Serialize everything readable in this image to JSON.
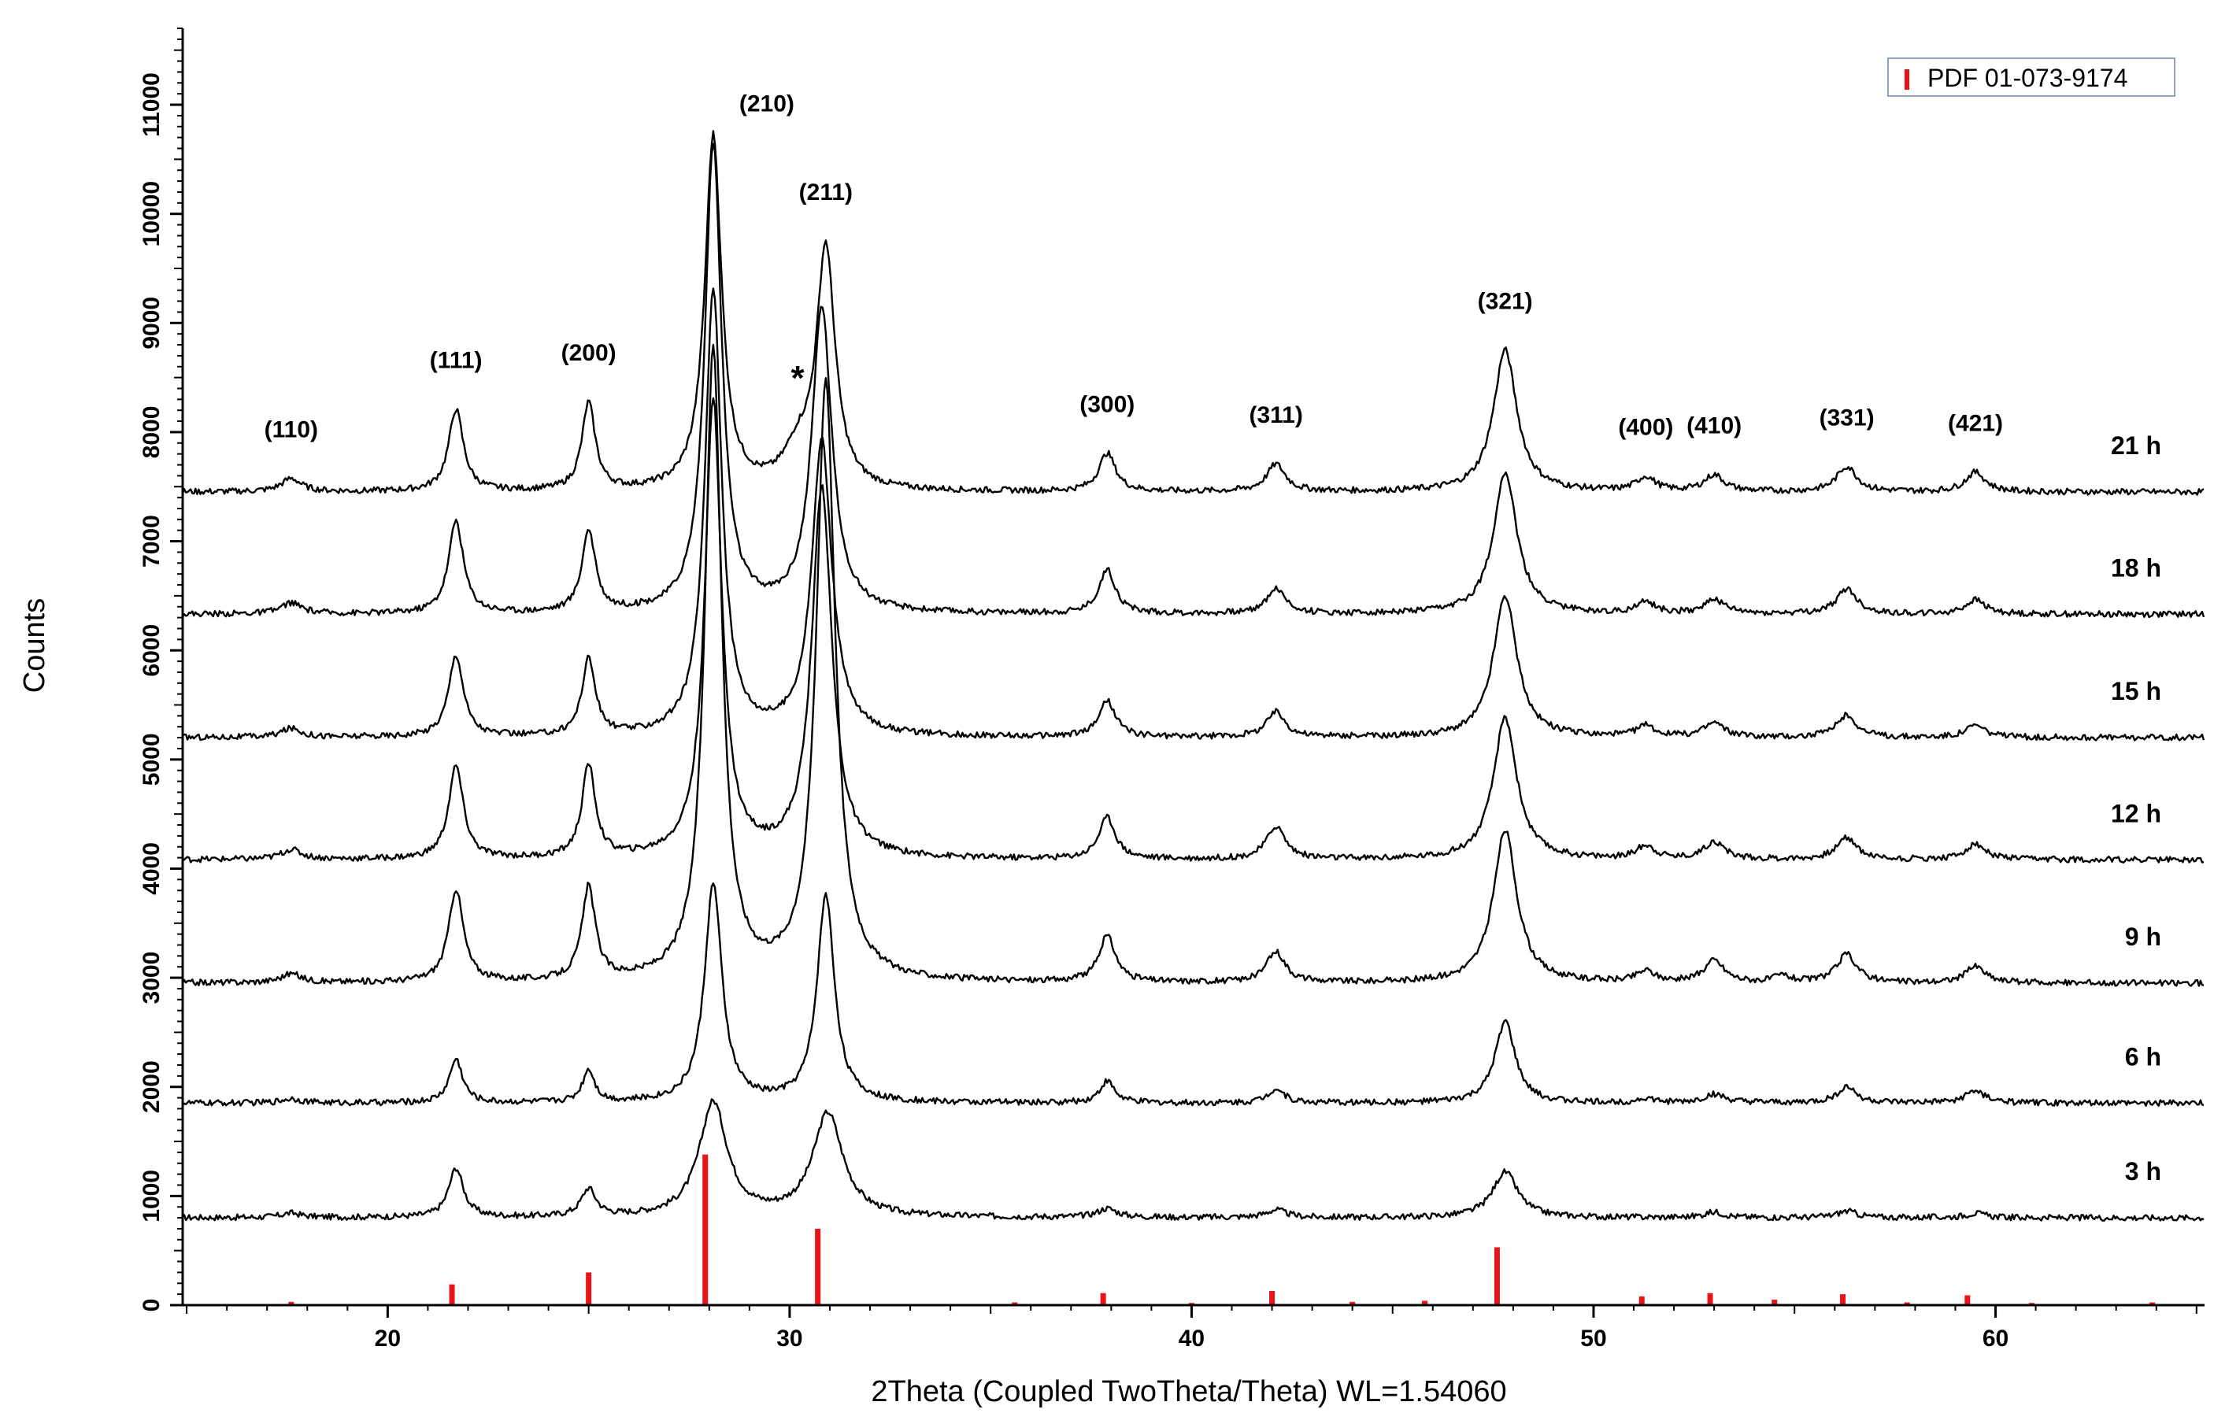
{
  "chart_data": {
    "type": "line",
    "xlabel": "2Theta (Coupled TwoTheta/Theta) WL=1.54060",
    "ylabel": "Counts",
    "xlim": [
      14.9,
      65.2
    ],
    "ylim": [
      0,
      11700
    ],
    "xticks_major": [
      20,
      30,
      40,
      50,
      60
    ],
    "yticks_major": [
      0,
      1000,
      2000,
      3000,
      4000,
      5000,
      6000,
      7000,
      8000,
      9000,
      10000,
      11000
    ],
    "legend": {
      "position": "top-right",
      "label": "PDF 01-073-9174",
      "color": "#e8141a"
    },
    "series_color": "#000000",
    "peak_markers": [
      {
        "label": "(110)",
        "x": 17.6
      },
      {
        "label": "(111)",
        "x": 21.7
      },
      {
        "label": "(200)",
        "x": 25.0
      },
      {
        "label": "(210)",
        "x": 28.1
      },
      {
        "label": "(211)",
        "x": 30.9
      },
      {
        "label": "*",
        "x": 30.2
      },
      {
        "label": "(300)",
        "x": 37.9
      },
      {
        "label": "(311)",
        "x": 42.1
      },
      {
        "label": "(321)",
        "x": 47.8
      },
      {
        "label": "(400)",
        "x": 51.3
      },
      {
        "label": "(410)",
        "x": 53.0
      },
      {
        "label": "(331)",
        "x": 56.3
      },
      {
        "label": "(421)",
        "x": 59.5
      }
    ],
    "series": [
      {
        "name": "3 h",
        "baseline": 800,
        "peaks": [
          [
            17.6,
            40,
            0.3
          ],
          [
            21.7,
            450,
            0.22
          ],
          [
            25.0,
            250,
            0.22
          ],
          [
            28.1,
            1050,
            0.42
          ],
          [
            30.95,
            950,
            0.45
          ],
          [
            37.9,
            80,
            0.3
          ],
          [
            42.1,
            70,
            0.3
          ],
          [
            47.8,
            420,
            0.38
          ],
          [
            53.0,
            50,
            0.3
          ],
          [
            56.3,
            60,
            0.3
          ],
          [
            59.5,
            40,
            0.3
          ]
        ]
      },
      {
        "name": "6 h",
        "baseline": 1850,
        "peaks": [
          [
            17.6,
            40,
            0.3
          ],
          [
            21.7,
            400,
            0.2
          ],
          [
            25.0,
            300,
            0.18
          ],
          [
            28.1,
            2000,
            0.26
          ],
          [
            30.9,
            1900,
            0.26
          ],
          [
            37.9,
            200,
            0.22
          ],
          [
            42.1,
            130,
            0.25
          ],
          [
            47.8,
            750,
            0.3
          ],
          [
            51.3,
            40,
            0.25
          ],
          [
            53.0,
            80,
            0.3
          ],
          [
            56.3,
            150,
            0.28
          ],
          [
            59.5,
            110,
            0.3
          ]
        ]
      },
      {
        "name": "9 h",
        "baseline": 2950,
        "peaks": [
          [
            17.6,
            80,
            0.3
          ],
          [
            21.7,
            850,
            0.22
          ],
          [
            25.0,
            850,
            0.2
          ],
          [
            28.1,
            5800,
            0.25
          ],
          [
            30.9,
            5500,
            0.28
          ],
          [
            37.9,
            420,
            0.25
          ],
          [
            42.1,
            280,
            0.28
          ],
          [
            47.8,
            1400,
            0.35
          ],
          [
            51.3,
            100,
            0.28
          ],
          [
            53.0,
            200,
            0.3
          ],
          [
            54.7,
            60,
            0.25
          ],
          [
            56.3,
            260,
            0.3
          ],
          [
            59.5,
            150,
            0.3
          ]
        ]
      },
      {
        "name": "12 h",
        "baseline": 4080,
        "peaks": [
          [
            17.6,
            90,
            0.3
          ],
          [
            21.7,
            850,
            0.22
          ],
          [
            25.0,
            850,
            0.2
          ],
          [
            28.1,
            4200,
            0.25
          ],
          [
            30.8,
            3400,
            0.3
          ],
          [
            37.9,
            380,
            0.25
          ],
          [
            42.1,
            300,
            0.28
          ],
          [
            47.8,
            1300,
            0.35
          ],
          [
            51.3,
            120,
            0.28
          ],
          [
            53.0,
            160,
            0.3
          ],
          [
            56.3,
            200,
            0.3
          ],
          [
            59.5,
            140,
            0.3
          ]
        ]
      },
      {
        "name": "15 h",
        "baseline": 5200,
        "peaks": [
          [
            17.6,
            80,
            0.3
          ],
          [
            21.7,
            750,
            0.22
          ],
          [
            25.0,
            700,
            0.2
          ],
          [
            28.1,
            4100,
            0.25
          ],
          [
            30.8,
            2700,
            0.3
          ],
          [
            37.9,
            330,
            0.25
          ],
          [
            42.1,
            230,
            0.28
          ],
          [
            47.8,
            1300,
            0.35
          ],
          [
            51.3,
            100,
            0.28
          ],
          [
            53.0,
            130,
            0.3
          ],
          [
            56.3,
            200,
            0.3
          ],
          [
            59.5,
            110,
            0.3
          ]
        ]
      },
      {
        "name": "18 h",
        "baseline": 6330,
        "peaks": [
          [
            17.6,
            100,
            0.3
          ],
          [
            21.7,
            850,
            0.22
          ],
          [
            25.0,
            750,
            0.2
          ],
          [
            28.1,
            4300,
            0.25
          ],
          [
            30.8,
            2800,
            0.3
          ],
          [
            37.9,
            400,
            0.25
          ],
          [
            42.1,
            230,
            0.28
          ],
          [
            47.8,
            1300,
            0.35
          ],
          [
            51.3,
            100,
            0.28
          ],
          [
            53.0,
            130,
            0.3
          ],
          [
            56.3,
            230,
            0.3
          ],
          [
            59.5,
            130,
            0.3
          ]
        ]
      },
      {
        "name": "21 h",
        "baseline": 7450,
        "peaks": [
          [
            17.6,
            120,
            0.3
          ],
          [
            21.7,
            750,
            0.22
          ],
          [
            25.0,
            800,
            0.2
          ],
          [
            28.1,
            3250,
            0.25
          ],
          [
            30.2,
            300,
            0.4
          ],
          [
            30.9,
            2200,
            0.28
          ],
          [
            37.9,
            350,
            0.25
          ],
          [
            42.1,
            250,
            0.28
          ],
          [
            47.8,
            1300,
            0.35
          ],
          [
            51.3,
            130,
            0.28
          ],
          [
            53.0,
            150,
            0.3
          ],
          [
            56.3,
            230,
            0.3
          ],
          [
            59.5,
            180,
            0.3
          ]
        ]
      }
    ],
    "reference_pattern": {
      "name": "PDF 01-073-9174",
      "x": [
        17.6,
        21.6,
        25.0,
        27.9,
        30.7,
        35.6,
        37.8,
        40.0,
        42.0,
        44.0,
        45.8,
        47.6,
        51.2,
        52.9,
        54.5,
        56.2,
        57.8,
        59.3,
        60.9,
        63.9
      ],
      "y": [
        30,
        190,
        300,
        1380,
        700,
        25,
        110,
        20,
        130,
        30,
        40,
        530,
        80,
        110,
        50,
        100,
        25,
        90,
        20,
        25
      ]
    }
  }
}
